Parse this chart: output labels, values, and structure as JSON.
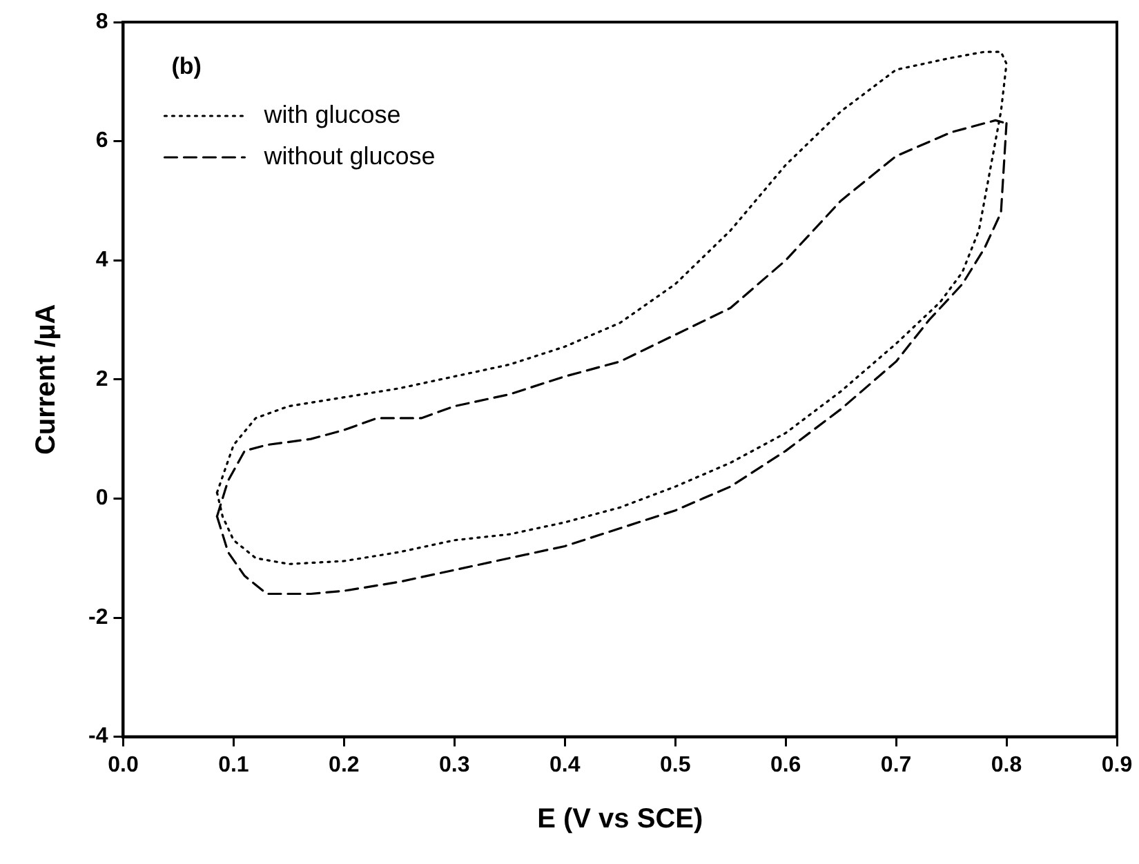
{
  "chart_data": {
    "type": "line",
    "xlabel": "E (V vs SCE)",
    "ylabel": "Current /µA",
    "annotations": [
      "(b)"
    ],
    "xlim": [
      0,
      0.9
    ],
    "xticks": [
      {
        "value": 0,
        "label": "0.0"
      },
      0.1,
      0.2,
      0.3,
      0.4,
      0.5,
      0.6,
      0.7,
      0.8,
      0.9
    ],
    "ylim": [
      -4,
      8
    ],
    "yticks": [
      -4,
      -2,
      0,
      2,
      4,
      6,
      8
    ],
    "legend": "top left",
    "marker": "none",
    "series": [
      {
        "name": "with glucose",
        "color": "#000000",
        "line_style": "dotted",
        "x": [
          0.085,
          0.1,
          0.12,
          0.15,
          0.2,
          0.25,
          0.3,
          0.35,
          0.4,
          0.45,
          0.5,
          0.55,
          0.6,
          0.65,
          0.7,
          0.75,
          0.78,
          0.795,
          0.8
        ],
        "values": [
          0.1,
          0.9,
          1.35,
          1.55,
          1.7,
          1.85,
          2.05,
          2.25,
          2.55,
          2.95,
          3.6,
          4.5,
          5.6,
          6.5,
          7.2,
          7.4,
          7.5,
          7.5,
          7.3
        ]
      },
      {
        "name": "without glucose",
        "color": "#000000",
        "line_style": "dashed",
        "x": [
          0.085,
          0.095,
          0.11,
          0.13,
          0.17,
          0.2,
          0.23,
          0.27,
          0.3,
          0.35,
          0.4,
          0.45,
          0.5,
          0.55,
          0.6,
          0.65,
          0.7,
          0.75,
          0.79,
          0.8
        ],
        "values": [
          -0.3,
          0.3,
          0.8,
          0.9,
          1.0,
          1.15,
          1.35,
          1.35,
          1.55,
          1.75,
          2.05,
          2.3,
          2.75,
          3.2,
          4.0,
          5.0,
          5.75,
          6.15,
          6.35,
          6.3
        ]
      },
      {
        "color": "#000000",
        "line_style": "dotted",
        "x": [
          0.085,
          0.09,
          0.1,
          0.12,
          0.15,
          0.2,
          0.25,
          0.3,
          0.35,
          0.4,
          0.45,
          0.5,
          0.55,
          0.6,
          0.65,
          0.7,
          0.74,
          0.76,
          0.775,
          0.785,
          0.795,
          0.8
        ],
        "values": [
          0.1,
          -0.3,
          -0.7,
          -1.0,
          -1.1,
          -1.05,
          -0.9,
          -0.7,
          -0.6,
          -0.4,
          -0.15,
          0.2,
          0.6,
          1.1,
          1.8,
          2.6,
          3.3,
          3.8,
          4.5,
          5.5,
          6.5,
          7.3
        ]
      },
      {
        "color": "#000000",
        "line_style": "dashed",
        "x": [
          0.085,
          0.095,
          0.11,
          0.13,
          0.17,
          0.2,
          0.25,
          0.3,
          0.35,
          0.4,
          0.45,
          0.5,
          0.55,
          0.6,
          0.65,
          0.7,
          0.73,
          0.76,
          0.78,
          0.795,
          0.8
        ],
        "values": [
          -0.3,
          -0.9,
          -1.3,
          -1.6,
          -1.6,
          -1.55,
          -1.4,
          -1.2,
          -1.0,
          -0.8,
          -0.5,
          -0.2,
          0.2,
          0.8,
          1.5,
          2.3,
          3.0,
          3.6,
          4.2,
          4.8,
          6.3
        ]
      }
    ]
  }
}
